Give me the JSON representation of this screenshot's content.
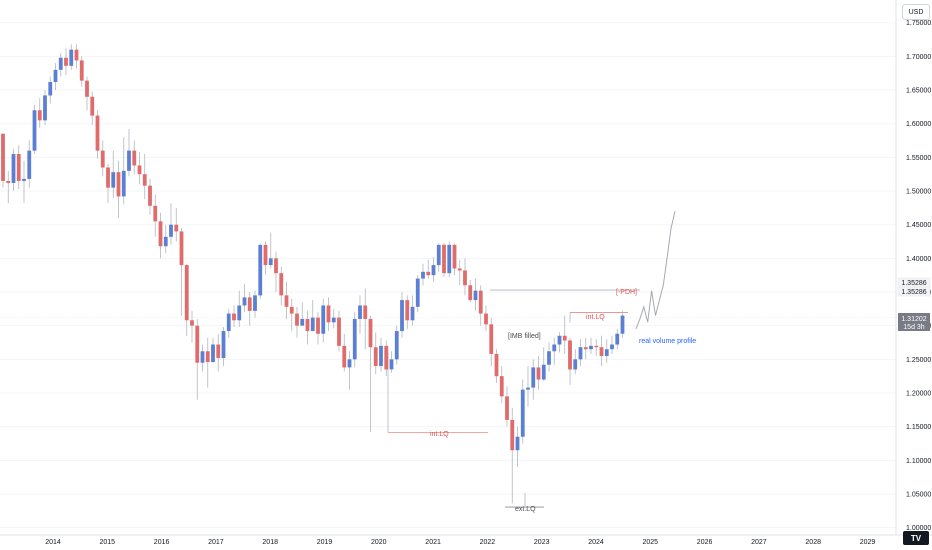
{
  "chart_data": {
    "type": "candlestick",
    "currency": "USD",
    "x_labels": [
      "2014",
      "2015",
      "2016",
      "2017",
      "2018",
      "2019",
      "2020",
      "2021",
      "2022",
      "2023",
      "2024",
      "2025",
      "2026",
      "2027",
      "2028",
      "2029"
    ],
    "y_ticks": [
      "1.75000",
      "1.70000",
      "1.65000",
      "1.60000",
      "1.55000",
      "1.50000",
      "1.45000",
      "1.40000",
      "1.35000",
      "1.30000",
      "1.25000",
      "1.20000",
      "1.15000",
      "1.10000",
      "1.05000",
      "1.00000"
    ],
    "y_tick_values": [
      1.75,
      1.7,
      1.65,
      1.6,
      1.55,
      1.5,
      1.45,
      1.4,
      1.35,
      1.3,
      1.25,
      1.2,
      1.15,
      1.1,
      1.05,
      1.0
    ],
    "ylim": [
      0.99,
      1.78
    ],
    "price_labels": {
      "level_1": "1.35286",
      "level_2": "1.35286",
      "current": "1.31202",
      "countdown": "15d 3h"
    },
    "level_values": {
      "ref_level": 1.3529,
      "current": 1.312,
      "int_lq_low": 1.1415,
      "int_lq_high": 1.3195,
      "ext_lq": 1.0365
    },
    "annotations": {
      "pdh": "[-PDH]",
      "int_lq_upper": "int.LQ",
      "int_lq_lower": "int.LQ",
      "ext_lq": "ext.LQ",
      "imb": "[IMB filled]",
      "volume_profile": "real volume profile"
    },
    "candles": [
      [
        1.585,
        1.515,
        1.586,
        1.505
      ],
      [
        1.515,
        1.512,
        1.53,
        1.482
      ],
      [
        1.512,
        1.555,
        1.563,
        1.5
      ],
      [
        1.555,
        1.515,
        1.568,
        1.503
      ],
      [
        1.515,
        1.518,
        1.545,
        1.482
      ],
      [
        1.518,
        1.56,
        1.575,
        1.505
      ],
      [
        1.56,
        1.62,
        1.628,
        1.555
      ],
      [
        1.62,
        1.605,
        1.638,
        1.594
      ],
      [
        1.605,
        1.642,
        1.65,
        1.598
      ],
      [
        1.642,
        1.662,
        1.67,
        1.63
      ],
      [
        1.662,
        1.68,
        1.69,
        1.65
      ],
      [
        1.68,
        1.698,
        1.705,
        1.67
      ],
      [
        1.698,
        1.686,
        1.712,
        1.672
      ],
      [
        1.686,
        1.71,
        1.718,
        1.68
      ],
      [
        1.71,
        1.694,
        1.718,
        1.682
      ],
      [
        1.694,
        1.664,
        1.7,
        1.655
      ],
      [
        1.664,
        1.64,
        1.67,
        1.62
      ],
      [
        1.64,
        1.612,
        1.648,
        1.598
      ],
      [
        1.612,
        1.56,
        1.62,
        1.548
      ],
      [
        1.56,
        1.535,
        1.575,
        1.522
      ],
      [
        1.535,
        1.505,
        1.54,
        1.482
      ],
      [
        1.505,
        1.528,
        1.56,
        1.49
      ],
      [
        1.528,
        1.492,
        1.545,
        1.46
      ],
      [
        1.492,
        1.53,
        1.58,
        1.48
      ],
      [
        1.53,
        1.56,
        1.592,
        1.522
      ],
      [
        1.56,
        1.538,
        1.575,
        1.525
      ],
      [
        1.538,
        1.525,
        1.558,
        1.51
      ],
      [
        1.525,
        1.508,
        1.555,
        1.488
      ],
      [
        1.508,
        1.478,
        1.518,
        1.465
      ],
      [
        1.478,
        1.455,
        1.495,
        1.432
      ],
      [
        1.455,
        1.418,
        1.468,
        1.4
      ],
      [
        1.418,
        1.432,
        1.45,
        1.408
      ],
      [
        1.432,
        1.45,
        1.482,
        1.42
      ],
      [
        1.45,
        1.44,
        1.475,
        1.425
      ],
      [
        1.44,
        1.39,
        1.445,
        1.315
      ],
      [
        1.39,
        1.308,
        1.392,
        1.285
      ],
      [
        1.308,
        1.3,
        1.322,
        1.275
      ],
      [
        1.3,
        1.245,
        1.31,
        1.19
      ],
      [
        1.245,
        1.262,
        1.272,
        1.232
      ],
      [
        1.262,
        1.246,
        1.282,
        1.208
      ],
      [
        1.246,
        1.272,
        1.282,
        1.245
      ],
      [
        1.272,
        1.252,
        1.288,
        1.232
      ],
      [
        1.252,
        1.292,
        1.298,
        1.24
      ],
      [
        1.292,
        1.318,
        1.325,
        1.282
      ],
      [
        1.318,
        1.308,
        1.33,
        1.298
      ],
      [
        1.308,
        1.33,
        1.352,
        1.298
      ],
      [
        1.33,
        1.342,
        1.362,
        1.32
      ],
      [
        1.342,
        1.322,
        1.35,
        1.3
      ],
      [
        1.322,
        1.345,
        1.352,
        1.312
      ],
      [
        1.345,
        1.42,
        1.422,
        1.34
      ],
      [
        1.42,
        1.39,
        1.425,
        1.376
      ],
      [
        1.39,
        1.4,
        1.438,
        1.385
      ],
      [
        1.4,
        1.378,
        1.41,
        1.35
      ],
      [
        1.378,
        1.345,
        1.388,
        1.33
      ],
      [
        1.345,
        1.328,
        1.365,
        1.31
      ],
      [
        1.328,
        1.318,
        1.34,
        1.292
      ],
      [
        1.318,
        1.3,
        1.328,
        1.282
      ],
      [
        1.3,
        1.31,
        1.335,
        1.3
      ],
      [
        1.31,
        1.292,
        1.322,
        1.272
      ],
      [
        1.292,
        1.312,
        1.338,
        1.295
      ],
      [
        1.312,
        1.288,
        1.32,
        1.272
      ],
      [
        1.288,
        1.33,
        1.34,
        1.275
      ],
      [
        1.33,
        1.305,
        1.342,
        1.292
      ],
      [
        1.305,
        1.312,
        1.325,
        1.296
      ],
      [
        1.312,
        1.27,
        1.322,
        1.262
      ],
      [
        1.27,
        1.238,
        1.288,
        1.232
      ],
      [
        1.238,
        1.25,
        1.262,
        1.205
      ],
      [
        1.25,
        1.31,
        1.32,
        1.238
      ],
      [
        1.31,
        1.33,
        1.345,
        1.288
      ],
      [
        1.33,
        1.31,
        1.355,
        1.265
      ],
      [
        1.31,
        1.268,
        1.315,
        1.142
      ],
      [
        1.268,
        1.24,
        1.29,
        1.228
      ],
      [
        1.24,
        1.27,
        1.282,
        1.232
      ],
      [
        1.27,
        1.235,
        1.278,
        1.225
      ],
      [
        1.235,
        1.25,
        1.262,
        1.23
      ],
      [
        1.25,
        1.292,
        1.3,
        1.242
      ],
      [
        1.292,
        1.338,
        1.35,
        1.282
      ],
      [
        1.338,
        1.308,
        1.345,
        1.295
      ],
      [
        1.308,
        1.328,
        1.345,
        1.3
      ],
      [
        1.328,
        1.37,
        1.375,
        1.32
      ],
      [
        1.37,
        1.38,
        1.392,
        1.36
      ],
      [
        1.38,
        1.375,
        1.398,
        1.37
      ],
      [
        1.375,
        1.39,
        1.402,
        1.365
      ],
      [
        1.39,
        1.42,
        1.422,
        1.38
      ],
      [
        1.42,
        1.378,
        1.423,
        1.372
      ],
      [
        1.378,
        1.42,
        1.425,
        1.372
      ],
      [
        1.42,
        1.385,
        1.422,
        1.375
      ],
      [
        1.385,
        1.382,
        1.398,
        1.36
      ],
      [
        1.382,
        1.36,
        1.4,
        1.345
      ],
      [
        1.36,
        1.338,
        1.368,
        1.335
      ],
      [
        1.338,
        1.352,
        1.37,
        1.322
      ],
      [
        1.352,
        1.318,
        1.36,
        1.3
      ],
      [
        1.318,
        1.302,
        1.33,
        1.292
      ],
      [
        1.302,
        1.258,
        1.312,
        1.24
      ],
      [
        1.258,
        1.225,
        1.265,
        1.215
      ],
      [
        1.225,
        1.195,
        1.24,
        1.185
      ],
      [
        1.195,
        1.16,
        1.21,
        1.15
      ],
      [
        1.16,
        1.115,
        1.178,
        1.036
      ],
      [
        1.115,
        1.135,
        1.15,
        1.09
      ],
      [
        1.135,
        1.205,
        1.22,
        1.125
      ],
      [
        1.205,
        1.208,
        1.24,
        1.18
      ],
      [
        1.208,
        1.238,
        1.25,
        1.19
      ],
      [
        1.238,
        1.22,
        1.255,
        1.205
      ],
      [
        1.22,
        1.242,
        1.268,
        1.218
      ],
      [
        1.242,
        1.262,
        1.275,
        1.232
      ],
      [
        1.262,
        1.272,
        1.282,
        1.242
      ],
      [
        1.272,
        1.285,
        1.29,
        1.26
      ],
      [
        1.285,
        1.278,
        1.315,
        1.258
      ],
      [
        1.278,
        1.235,
        1.282,
        1.212
      ],
      [
        1.235,
        1.25,
        1.265,
        1.228
      ],
      [
        1.25,
        1.268,
        1.28,
        1.24
      ],
      [
        1.268,
        1.265,
        1.282,
        1.25
      ],
      [
        1.265,
        1.27,
        1.282,
        1.258
      ],
      [
        1.27,
        1.268,
        1.28,
        1.255
      ],
      [
        1.268,
        1.255,
        1.285,
        1.24
      ],
      [
        1.255,
        1.265,
        1.28,
        1.245
      ],
      [
        1.265,
        1.272,
        1.285,
        1.258
      ],
      [
        1.272,
        1.288,
        1.295,
        1.265
      ],
      [
        1.288,
        1.315,
        1.322,
        1.282
      ]
    ],
    "projection": [
      [
        1.295,
        1.31,
        1.328,
        1.305,
        1.352,
        1.315,
        1.338,
        1.36,
        1.402,
        1.445,
        1.47
      ]
    ]
  }
}
